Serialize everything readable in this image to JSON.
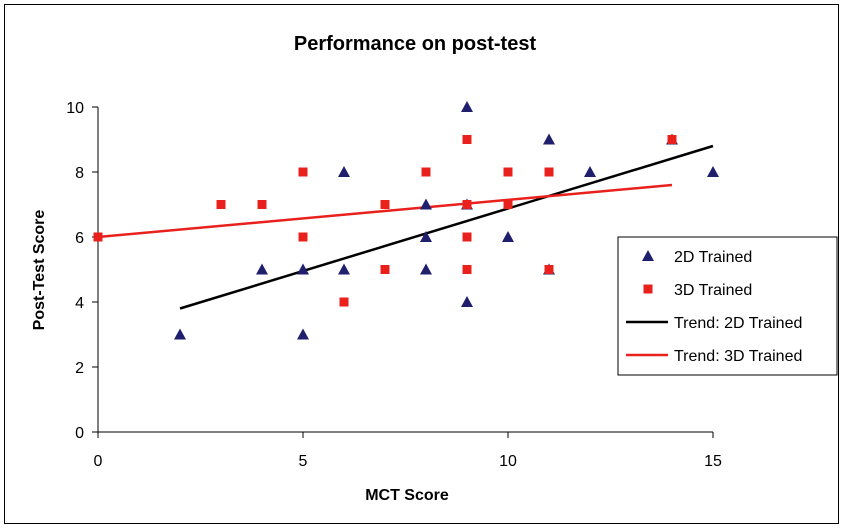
{
  "chart_data": {
    "type": "scatter",
    "title": "Performance on post-test",
    "xlabel": "MCT Score",
    "ylabel": "Post-Test Score",
    "xlim": [
      0,
      15
    ],
    "ylim": [
      0,
      10
    ],
    "xticks": [
      0,
      5,
      10,
      15
    ],
    "yticks": [
      0,
      2,
      4,
      6,
      8,
      10
    ],
    "grid": false,
    "legend_position": "right",
    "series": [
      {
        "name": "2D Trained",
        "marker": "triangle",
        "color": "#1f1f6e",
        "points": [
          [
            2,
            3
          ],
          [
            4,
            5
          ],
          [
            5,
            5
          ],
          [
            5,
            3
          ],
          [
            6,
            8
          ],
          [
            6,
            5
          ],
          [
            8,
            7
          ],
          [
            8,
            6
          ],
          [
            8,
            5
          ],
          [
            9,
            10
          ],
          [
            9,
            7
          ],
          [
            9,
            4
          ],
          [
            10,
            6
          ],
          [
            11,
            9
          ],
          [
            11,
            5
          ],
          [
            12,
            8
          ],
          [
            14,
            9
          ],
          [
            15,
            8
          ]
        ]
      },
      {
        "name": "3D Trained",
        "marker": "square",
        "color": "#e8211d",
        "points": [
          [
            0,
            6
          ],
          [
            3,
            7
          ],
          [
            4,
            7
          ],
          [
            5,
            8
          ],
          [
            5,
            6
          ],
          [
            6,
            4
          ],
          [
            7,
            7
          ],
          [
            7,
            5
          ],
          [
            8,
            8
          ],
          [
            9,
            9
          ],
          [
            9,
            7
          ],
          [
            9,
            6
          ],
          [
            9,
            5
          ],
          [
            10,
            8
          ],
          [
            10,
            7
          ],
          [
            11,
            8
          ],
          [
            11,
            5
          ],
          [
            14,
            9
          ]
        ]
      }
    ],
    "trendlines": [
      {
        "name": "Trend: 2D Trained",
        "color": "#000000",
        "from": [
          2,
          3.8
        ],
        "to": [
          15,
          8.8
        ]
      },
      {
        "name": "Trend: 3D Trained",
        "color": "#e8211d",
        "from": [
          0,
          6.0
        ],
        "to": [
          14,
          7.6
        ]
      }
    ]
  }
}
